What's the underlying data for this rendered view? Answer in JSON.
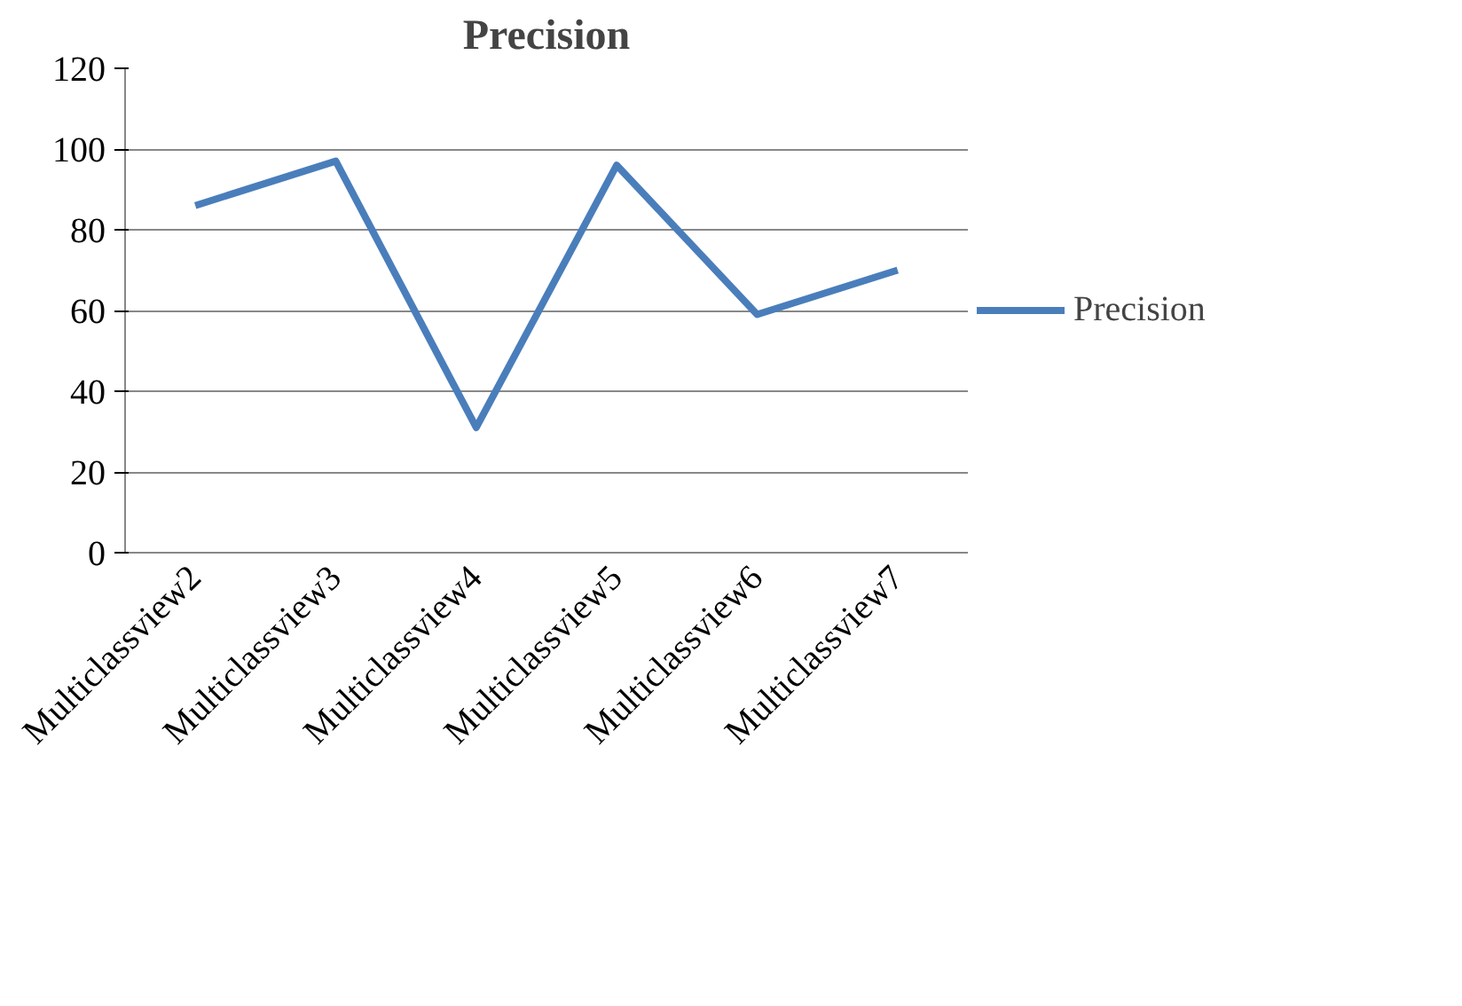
{
  "chart_data": {
    "type": "line",
    "title": "Precision",
    "categories": [
      "Multiclassview2",
      "Multiclassview3",
      "Multiclassview4",
      "Multiclassview5",
      "Multiclassview6",
      "Multiclassview7"
    ],
    "series": [
      {
        "name": "Precision",
        "color": "#4a7ebb",
        "values": [
          86,
          97,
          31,
          96,
          59,
          70
        ]
      }
    ],
    "ylim": [
      0,
      120
    ],
    "yticks": [
      0,
      20,
      40,
      60,
      80,
      100,
      120
    ],
    "grid": "y",
    "legend": "right",
    "marker": "none"
  }
}
